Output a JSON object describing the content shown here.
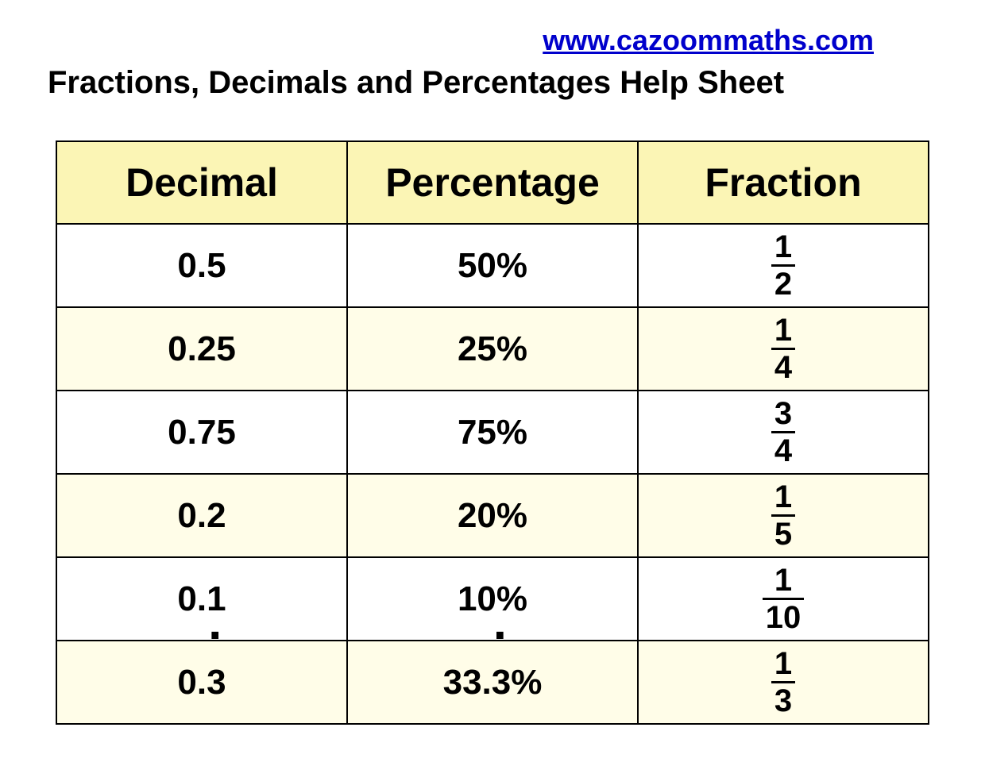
{
  "header": {
    "url": "www.cazoommaths.com",
    "title": "Fractions, Decimals and Percentages Help Sheet"
  },
  "table": {
    "type": "table",
    "columns": [
      "Decimal",
      "Percentage",
      "Fraction"
    ],
    "header_bg": "#fbf5b5",
    "row_alt_bg": "#fffde8",
    "border_color": "#000000",
    "header_fontsize": 50,
    "cell_fontsize": 44,
    "fraction_fontsize": 40,
    "rows": [
      {
        "decimal": {
          "pre": "0.5",
          "rec": "",
          "post": ""
        },
        "percentage": {
          "pre": "50",
          "rec": "",
          "post": "%"
        },
        "fraction": {
          "num": "1",
          "den": "2"
        },
        "alt": false
      },
      {
        "decimal": {
          "pre": "0.25",
          "rec": "",
          "post": ""
        },
        "percentage": {
          "pre": "25",
          "rec": "",
          "post": "%"
        },
        "fraction": {
          "num": "1",
          "den": "4"
        },
        "alt": true
      },
      {
        "decimal": {
          "pre": "0.75",
          "rec": "",
          "post": ""
        },
        "percentage": {
          "pre": "75",
          "rec": "",
          "post": "%"
        },
        "fraction": {
          "num": "3",
          "den": "4"
        },
        "alt": false
      },
      {
        "decimal": {
          "pre": "0.2",
          "rec": "",
          "post": ""
        },
        "percentage": {
          "pre": "20",
          "rec": "",
          "post": "%"
        },
        "fraction": {
          "num": "1",
          "den": "5"
        },
        "alt": true
      },
      {
        "decimal": {
          "pre": "0.1",
          "rec": "",
          "post": ""
        },
        "percentage": {
          "pre": "10",
          "rec": "",
          "post": "%"
        },
        "fraction": {
          "num": "1",
          "den": "10"
        },
        "alt": false
      },
      {
        "decimal": {
          "pre": "0.",
          "rec": "3",
          "post": ""
        },
        "percentage": {
          "pre": "33.",
          "rec": "3",
          "post": "%"
        },
        "fraction": {
          "num": "1",
          "den": "3"
        },
        "alt": true
      }
    ]
  }
}
